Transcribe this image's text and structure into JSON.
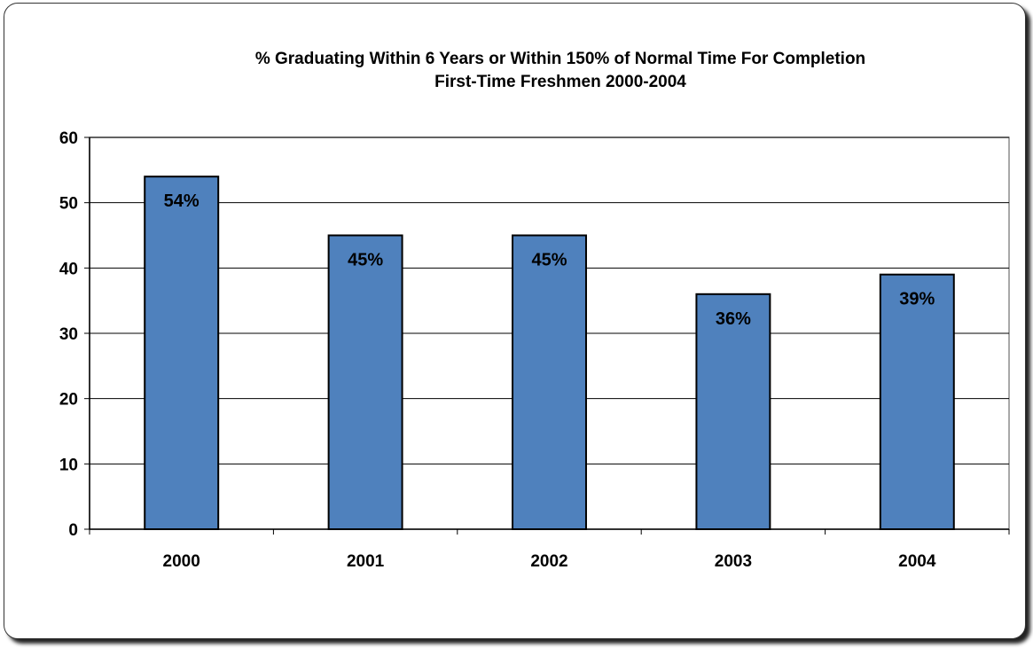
{
  "chart_data": {
    "type": "bar",
    "title": "% Graduating Within 6 Years or Within 150% of Normal Time For Completion",
    "subtitle": "First-Time Freshmen 2000-2004",
    "categories": [
      "2000",
      "2001",
      "2002",
      "2003",
      "2004"
    ],
    "values": [
      54,
      45,
      45,
      36,
      39
    ],
    "data_labels": [
      "54%",
      "45%",
      "45%",
      "36%",
      "39%"
    ],
    "xlabel": "",
    "ylabel": "",
    "ylim": [
      0,
      60
    ],
    "yticks": [
      "0",
      "10",
      "20",
      "30",
      "40",
      "50",
      "60"
    ],
    "grid": true,
    "legend": "none",
    "bar_color": "#4F81BD",
    "bar_border_color": "#000000"
  }
}
